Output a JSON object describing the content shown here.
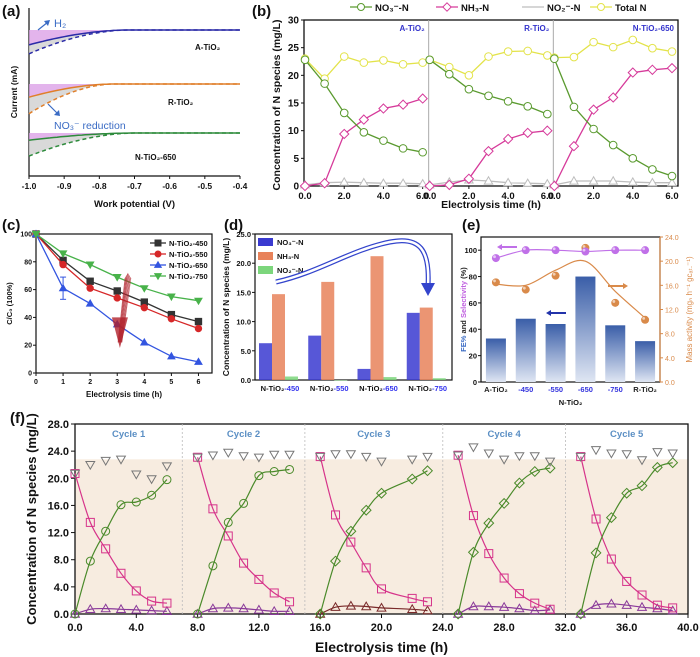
{
  "chart_data": [
    {
      "id": "a",
      "panel_label": "(a)",
      "type": "line",
      "xlabel": "Work potential (V)",
      "ylabel": "Current (mA)",
      "xlim": [
        -1.0,
        -0.4
      ],
      "xticks": [
        "-1.0",
        "-0.9",
        "-0.8",
        "-0.7",
        "-0.6",
        "-0.5",
        "-0.4"
      ],
      "curves": [
        {
          "name": "A-TiO2",
          "label": "A-TiO₂",
          "color": "#2b2ba8",
          "solid_start": 0.45,
          "dashed_start": 0.72,
          "knee": -0.72
        },
        {
          "name": "R-TiO2",
          "label": "R-TiO₂",
          "color": "#e07f2a",
          "solid_start": 0.4,
          "dashed_start": 0.9,
          "knee": -0.76
        },
        {
          "name": "N-TiO2-650",
          "label": "N-TiO₂-650",
          "color": "#2e8b3c",
          "solid_start": 0.22,
          "dashed_start": 0.7,
          "knee": -0.7
        }
      ],
      "annotations": [
        {
          "text": "H₂",
          "color": "#3a6bc4"
        },
        {
          "text": "NO₃⁻ reduction",
          "color": "#3a6bc4"
        }
      ],
      "fill_colors": {
        "h2": "#d99be6",
        "no3": "#d0d0d0"
      }
    },
    {
      "id": "b",
      "panel_label": "(b)",
      "type": "line",
      "xlabel": "Electrolysis time (h)",
      "ylabel": "Concentration of  N species (mg/L)",
      "ylim": [
        0,
        30
      ],
      "yticks": [
        "0",
        "5",
        "10",
        "15",
        "20",
        "25",
        "30"
      ],
      "xticks": [
        "0.0",
        "2.0",
        "4.0",
        "6.0"
      ],
      "legend": [
        {
          "name": "NO₃⁻-N",
          "color": "#5a9a2f",
          "marker": "circle"
        },
        {
          "name": "NH₃-N",
          "color": "#d63a9a",
          "marker": "diamond"
        },
        {
          "name": "NO₂⁻-N",
          "color": "#bdbdbd",
          "marker": "triangle"
        },
        {
          "name": "Total N",
          "color": "#e3e34a",
          "marker": "circle"
        }
      ],
      "x": [
        0,
        1,
        2,
        3,
        4,
        5,
        6
      ],
      "subpanels": [
        {
          "title": "A-TiO₂",
          "series": {
            "NO3": [
              22.8,
              18.5,
              13.2,
              9.7,
              8.2,
              6.8,
              6.1
            ],
            "NH3": [
              0.0,
              0.5,
              9.4,
              12.0,
              14.0,
              14.7,
              15.8
            ],
            "NO2": [
              0.2,
              0.6,
              0.7,
              0.6,
              0.5,
              0.5,
              0.4
            ],
            "Total": [
              23.0,
              19.4,
              23.4,
              22.3,
              22.7,
              22.0,
              22.3
            ]
          }
        },
        {
          "title": "R-TiO₂",
          "series": {
            "NO3": [
              22.8,
              20.2,
              17.5,
              16.3,
              15.3,
              14.4,
              13.0
            ],
            "NH3": [
              0.0,
              0.2,
              1.3,
              6.3,
              8.5,
              9.6,
              10.0
            ],
            "NO2": [
              0.2,
              0.7,
              1.1,
              0.9,
              0.6,
              0.5,
              0.4
            ],
            "Total": [
              22.8,
              21.5,
              20.0,
              23.4,
              24.3,
              24.4,
              23.6
            ]
          }
        },
        {
          "title": "N-TiO₂-650",
          "series": {
            "NO3": [
              23.0,
              14.3,
              10.3,
              7.4,
              5.0,
              3.0,
              1.8
            ],
            "NH3": [
              0.0,
              7.2,
              13.8,
              16.0,
              20.5,
              21.0,
              21.3
            ],
            "NO2": [
              0.2,
              0.9,
              0.9,
              0.9,
              0.7,
              0.6,
              0.6
            ],
            "Total": [
              23.2,
              23.3,
              26.0,
              25.1,
              26.4,
              24.9,
              24.3
            ]
          }
        }
      ]
    },
    {
      "id": "c",
      "panel_label": "(c)",
      "type": "line",
      "xlabel": "Electrolysis time (h)",
      "ylabel": "C/C₀ (100%)",
      "xlim": [
        0,
        6.5
      ],
      "ylim": [
        0,
        100
      ],
      "xticks": [
        "0",
        "1",
        "2",
        "3",
        "4",
        "5",
        "6"
      ],
      "yticks": [
        "0",
        "20",
        "40",
        "60",
        "80",
        "100"
      ],
      "x": [
        0,
        1,
        2,
        3,
        4,
        5,
        6
      ],
      "series": [
        {
          "name": "N-TiO₂-450",
          "color": "#333333",
          "marker": "square",
          "values": [
            100,
            81,
            66,
            59,
            51,
            42,
            37
          ]
        },
        {
          "name": "N-TiO₂-550",
          "color": "#d62728",
          "marker": "circle",
          "values": [
            100,
            78,
            61,
            54,
            47,
            39,
            32
          ]
        },
        {
          "name": "N-TiO₂-650",
          "color": "#3355e0",
          "marker": "triangle-up",
          "values": [
            100,
            61,
            50,
            35,
            22,
            12,
            8
          ]
        },
        {
          "name": "N-TiO₂-750",
          "color": "#48b24a",
          "marker": "triangle-down",
          "values": [
            100,
            86,
            78,
            69,
            61,
            55,
            52
          ]
        }
      ],
      "error_bar": {
        "series": "N-TiO₂-650",
        "x": 1,
        "low": 53,
        "high": 69
      },
      "decoration": "red hand-drawn arrow pointing down at x≈3"
    },
    {
      "id": "d",
      "panel_label": "(d)",
      "type": "bar",
      "ylabel": "Concentration of  N species (mg/L)",
      "ylim": [
        0,
        25
      ],
      "yticks": [
        "0.0",
        "5.0",
        "10.0",
        "15.0",
        "20.0",
        "25.0"
      ],
      "categories": [
        {
          "prefix": "N-TiO₂",
          "suffix": "-450"
        },
        {
          "prefix": "N-TiO₂",
          "suffix": "-550"
        },
        {
          "prefix": "N-TiO₂",
          "suffix": "-650"
        },
        {
          "prefix": "N-TiO₂",
          "suffix": "-750"
        }
      ],
      "series": [
        {
          "name": "NO₃⁻-N",
          "color": "#3a3ad0",
          "values": [
            6.3,
            7.6,
            1.9,
            11.5
          ]
        },
        {
          "name": "NH₃-N",
          "color": "#e8825a",
          "values": [
            14.7,
            16.8,
            21.2,
            12.4
          ]
        },
        {
          "name": "NO₂⁻-N",
          "color": "#7cd67c",
          "values": [
            0.6,
            0.0,
            0.5,
            0.3
          ]
        }
      ]
    },
    {
      "id": "e",
      "panel_label": "(e)",
      "type": "bar",
      "xlabel": "N-TiO₂",
      "ylabel_left_parts": [
        {
          "text": "FE%",
          "color": "#3a6bc4"
        },
        {
          "text": " and ",
          "color": "#222222"
        },
        {
          "text": "Selectivity",
          "color": "#c060e0"
        },
        {
          "text": " (%)",
          "color": "#222222"
        }
      ],
      "ylabel_right": "Mass activity (mgₙ h⁻¹ gᴄₐₜ.⁻¹)",
      "ylim_left": [
        0,
        110
      ],
      "ylim_right": [
        0,
        24
      ],
      "yticks_left": [
        "0",
        "20",
        "40",
        "60",
        "80",
        "100"
      ],
      "yticks_right": [
        "0.0",
        "4.0",
        "8.0",
        "12.0",
        "16.0",
        "20.0",
        "24.0"
      ],
      "categories": [
        "A-TiO₂",
        "-450",
        "-550",
        "-650",
        "-750",
        "R-TiO₂"
      ],
      "category_colors": [
        "#222222",
        "#3333dd",
        "#3333dd",
        "#3333dd",
        "#3333dd",
        "#222222"
      ],
      "fe_bars": {
        "name": "FE%",
        "color": "#3a5ea8",
        "values": [
          33,
          48,
          44,
          80,
          43,
          31
        ]
      },
      "selectivity": {
        "name": "Selectivity",
        "color": "#c070e8",
        "values": [
          94,
          100,
          100,
          99,
          100,
          100
        ]
      },
      "mass_activity": {
        "name": "Mass activity",
        "color": "#d98a4a",
        "values": [
          16.5,
          15.3,
          17.6,
          22.2,
          13.1,
          10.3
        ]
      }
    },
    {
      "id": "f",
      "panel_label": "(f)",
      "type": "line",
      "xlabel": "Electrolysis time (h)",
      "ylabel": "Concentration of N species (mg/L)",
      "xlim": [
        0,
        40
      ],
      "ylim": [
        0,
        28
      ],
      "xticks": [
        "0.0",
        "4.0",
        "8.0",
        "12.0",
        "16.0",
        "20.0",
        "24.0",
        "28.0",
        "32.0",
        "36.0",
        "40.0"
      ],
      "yticks": [
        "0.0",
        "4.0",
        "8.0",
        "12.0",
        "16.0",
        "20.0",
        "24.0",
        "28.0"
      ],
      "band_top": 22.8,
      "cycles": [
        {
          "label": "Cycle 1",
          "range": [
            0,
            7
          ],
          "x": [
            0,
            1,
            2,
            3,
            4,
            5,
            6
          ],
          "NO3": [
            20.7,
            13.5,
            9.6,
            6.0,
            3.4,
            1.9,
            1.6
          ],
          "NH3": [
            0.0,
            7.8,
            12.2,
            16.1,
            16.5,
            17.5,
            19.8
          ],
          "NO2": [
            0.0,
            0.7,
            0.8,
            0.7,
            0.6,
            0.5,
            0.4
          ],
          "Total": [
            20.7,
            22.0,
            22.6,
            22.8,
            20.6,
            19.9,
            21.8
          ]
        },
        {
          "label": "Cycle 2",
          "range": [
            7,
            15
          ],
          "x": [
            8,
            9,
            10,
            11,
            12,
            13,
            14
          ],
          "NO3": [
            23.1,
            15.5,
            11.5,
            7.5,
            5.1,
            3.1,
            1.8
          ],
          "NH3": [
            0.0,
            7.1,
            13.5,
            16.3,
            20.4,
            21.0,
            21.3
          ],
          "NO2": [
            0.0,
            0.8,
            0.9,
            0.8,
            0.6,
            0.4,
            0.4
          ],
          "Total": [
            23.1,
            23.4,
            23.8,
            23.3,
            23.1,
            23.5,
            23.5
          ]
        },
        {
          "label": "Cycle 3",
          "range": [
            15,
            24
          ],
          "x": [
            16,
            17,
            18,
            19,
            20,
            22,
            23
          ],
          "NO3": [
            23.2,
            14.6,
            10.6,
            6.8,
            3.7,
            2.3,
            1.8
          ],
          "NH3": [
            0.0,
            7.8,
            12.2,
            15.3,
            17.8,
            19.9,
            21.1
          ],
          "NO2": [
            0.0,
            1.0,
            1.2,
            1.1,
            0.9,
            0.7,
            0.5
          ],
          "Total": [
            23.2,
            23.6,
            23.6,
            23.2,
            22.5,
            22.8,
            23.2
          ]
        },
        {
          "label": "Cycle 4",
          "range": [
            24,
            32
          ],
          "x": [
            25,
            26,
            27,
            28,
            29,
            30,
            31
          ],
          "NO3": [
            23.4,
            14.5,
            8.9,
            5.3,
            3.0,
            1.6,
            0.7
          ],
          "NH3": [
            0.0,
            9.1,
            13.4,
            16.3,
            19.3,
            21.0,
            21.5
          ],
          "NO2": [
            0.0,
            1.1,
            1.1,
            1.0,
            0.8,
            0.5,
            0.6
          ],
          "Total": [
            23.4,
            24.6,
            23.7,
            22.8,
            23.3,
            23.3,
            22.5
          ]
        },
        {
          "label": "Cycle 5",
          "range": [
            32,
            40
          ],
          "x": [
            33,
            34,
            35,
            36,
            37,
            38,
            39
          ],
          "NO3": [
            23.2,
            14.0,
            8.1,
            4.8,
            2.8,
            1.3,
            0.9
          ],
          "NH3": [
            0.0,
            9.0,
            14.2,
            17.8,
            18.9,
            21.6,
            22.3
          ],
          "NO2": [
            0.0,
            1.3,
            1.5,
            1.3,
            1.0,
            0.8,
            0.5
          ],
          "Total": [
            23.2,
            24.2,
            23.7,
            23.6,
            22.7,
            23.9,
            23.7
          ]
        }
      ],
      "colors": {
        "NO3": "#d6338a",
        "NH3": "#4a8a2a",
        "NO2": "#8a3a9a",
        "NO2_cycle3": "#7a2a2a",
        "Total": "#777777",
        "band": "#f7ece0",
        "cycle_label": "#5b8fc4"
      },
      "markers": {
        "NO3": "square",
        "NH3_cycles_1_2": "circle",
        "NH3_cycles_3_5": "diamond",
        "NO2": "triangle-up",
        "Total": "triangle-down"
      }
    }
  ]
}
